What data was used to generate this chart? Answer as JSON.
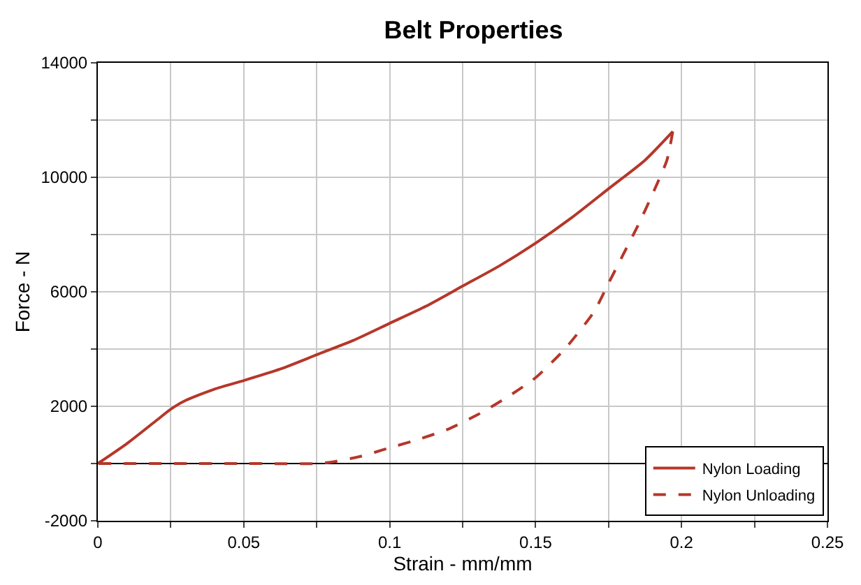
{
  "chart_data": {
    "type": "line",
    "title": "Belt Properties",
    "xlabel": "Strain - mm/mm",
    "ylabel": "Force - N",
    "series": [
      {
        "name": "Nylon Loading",
        "color": "#b5372a",
        "line_style": "solid",
        "x": [
          0,
          0.01,
          0.02,
          0.025,
          0.03,
          0.04,
          0.05,
          0.0625,
          0.075,
          0.0875,
          0.1,
          0.1125,
          0.125,
          0.1375,
          0.15,
          0.1625,
          0.175,
          0.1875,
          0.197
        ],
        "values": [
          0,
          700,
          1500,
          1900,
          2200,
          2600,
          2900,
          3300,
          3800,
          4300,
          4900,
          5500,
          6200,
          6900,
          7700,
          8600,
          9600,
          10600,
          11600
        ]
      },
      {
        "name": "Nylon Unloading",
        "color": "#b5372a",
        "line_style": "dashed",
        "x": [
          0.197,
          0.195,
          0.19,
          0.185,
          0.18,
          0.175,
          0.17,
          0.16,
          0.15,
          0.14,
          0.13,
          0.12,
          0.11,
          0.1,
          0.09,
          0.08,
          0.075,
          0.05,
          0.025,
          0
        ],
        "values": [
          11600,
          10600,
          9400,
          8300,
          7300,
          6300,
          5300,
          4000,
          3000,
          2300,
          1700,
          1200,
          850,
          550,
          250,
          50,
          0,
          0,
          0,
          0
        ]
      }
    ],
    "xlim": [
      0,
      0.25
    ],
    "xticks": [
      0,
      {
        "value": 0.025,
        "label": null
      },
      0.05,
      {
        "value": 0.075,
        "label": null
      },
      0.1,
      {
        "value": 0.125,
        "label": null
      },
      0.15,
      {
        "value": 0.175,
        "label": null
      },
      0.2,
      {
        "value": 0.225,
        "label": null
      },
      0.25
    ],
    "ylim": [
      -2000,
      14000
    ],
    "yticks": [
      -2000,
      {
        "value": 0,
        "label": null
      },
      2000,
      {
        "value": 4000,
        "label": null
      },
      6000,
      {
        "value": 8000,
        "label": null
      },
      10000,
      {
        "value": 12000,
        "label": null
      },
      14000
    ],
    "ref_lines": [
      {
        "axis": "y",
        "value": 0,
        "color": "#000000"
      }
    ],
    "grid": true,
    "legend": "bottom right"
  }
}
